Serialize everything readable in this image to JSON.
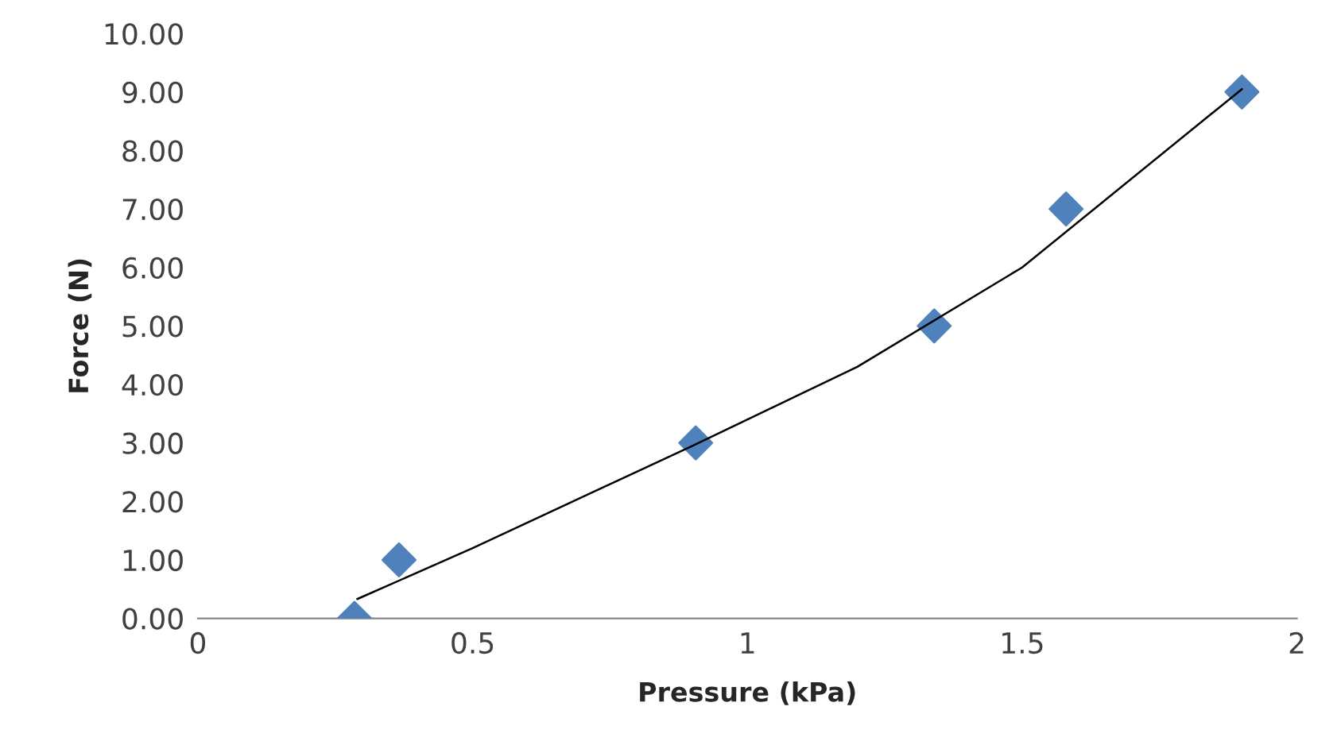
{
  "chart_data": {
    "type": "scatter",
    "xlabel": "Pressure (kPa)",
    "ylabel": "Force (N)",
    "series": [
      {
        "color": "#4f81bd",
        "marker": "diamond",
        "x": [
          0.285,
          0.366,
          0.906,
          1.34,
          1.58,
          1.9
        ],
        "values": [
          0,
          1,
          3,
          5,
          7,
          9
        ]
      },
      {
        "type": "line",
        "color": "#000000",
        "line_style": "solid",
        "marker": "none",
        "x": [
          0.29,
          0.5,
          0.9,
          1.2,
          1.5,
          1.9
        ],
        "values": [
          0.33,
          1.2,
          2.95,
          4.3,
          6.0,
          9.05
        ]
      }
    ],
    "xlim": [
      0,
      2
    ],
    "xticks": [
      0,
      0.5,
      1,
      1.5,
      2
    ],
    "ylim": [
      0,
      10
    ],
    "yticks": [
      {
        "value": 0,
        "label": "0.00"
      },
      {
        "value": 1,
        "label": "1.00"
      },
      {
        "value": 2,
        "label": "2.00"
      },
      {
        "value": 3,
        "label": "3.00"
      },
      {
        "value": 4,
        "label": "4.00"
      },
      {
        "value": 5,
        "label": "5.00"
      },
      {
        "value": 6,
        "label": "6.00"
      },
      {
        "value": 7,
        "label": "7.00"
      },
      {
        "value": 8,
        "label": "8.00"
      },
      {
        "value": 9,
        "label": "9.00"
      },
      {
        "value": 10,
        "label": "10.00"
      }
    ],
    "grid": false
  }
}
